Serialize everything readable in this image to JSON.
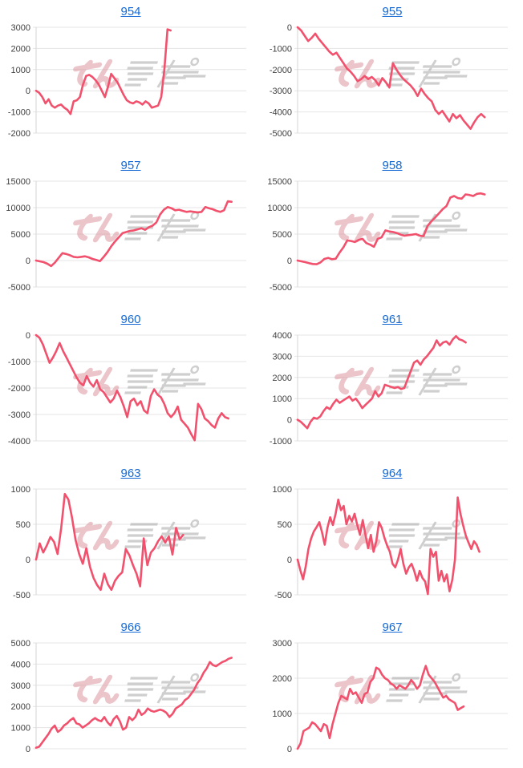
{
  "page": {
    "background": "#ffffff",
    "description": "grid of ten daily slump graphs"
  },
  "styles": {
    "line_color": "#f2516d",
    "grid_color": "#e4e4e4",
    "axis_color": "#d4d4d4",
    "tick_color": "#404040",
    "title_link_color": "#1668d2",
    "watermark_pink": "#dc96a0",
    "watermark_gray": "#a8a8a8"
  },
  "watermark": {
    "name": "minrepo-logo",
    "text": "みんレポ"
  },
  "chart_data": [
    {
      "type": "line",
      "title": "954",
      "xlabel": "",
      "ylabel": "",
      "legend": "none",
      "grid": true,
      "ylim": [
        -2000,
        3000
      ],
      "yticks": [
        3000,
        2000,
        1000,
        0,
        -1000,
        -2000
      ],
      "span": 0.64,
      "values": [
        0,
        -100,
        -300,
        -600,
        -400,
        -700,
        -800,
        -700,
        -650,
        -800,
        -900,
        -1100,
        -500,
        -450,
        -300,
        300,
        700,
        750,
        650,
        500,
        300,
        0,
        -300,
        200,
        800,
        600,
        400,
        100,
        -200,
        -450,
        -550,
        -600,
        -500,
        -550,
        -650,
        -500,
        -600,
        -800,
        -750,
        -700,
        -300,
        1000,
        2900,
        2850
      ]
    },
    {
      "type": "line",
      "title": "955",
      "xlabel": "",
      "ylabel": "",
      "legend": "none",
      "grid": true,
      "ylim": [
        -5000,
        0
      ],
      "yticks": [
        0,
        -1000,
        -2000,
        -3000,
        -4000,
        -5000
      ],
      "span": 0.89,
      "values": [
        0,
        -150,
        -400,
        -650,
        -500,
        -300,
        -550,
        -750,
        -950,
        -1150,
        -1300,
        -1200,
        -1450,
        -1700,
        -1950,
        -2100,
        -2300,
        -2550,
        -2450,
        -2300,
        -2450,
        -2350,
        -2500,
        -2750,
        -2400,
        -2600,
        -2850,
        -1700,
        -2000,
        -2250,
        -2450,
        -2600,
        -2750,
        -2950,
        -3250,
        -2900,
        -3150,
        -3350,
        -3500,
        -3900,
        -4100,
        -3950,
        -4200,
        -4450,
        -4100,
        -4300,
        -4150,
        -4400,
        -4600,
        -4800,
        -4500,
        -4250,
        -4100,
        -4250
      ]
    },
    {
      "type": "line",
      "title": "957",
      "xlabel": "",
      "ylabel": "",
      "legend": "none",
      "grid": true,
      "ylim": [
        -5000,
        15000
      ],
      "yticks": [
        15000,
        10000,
        5000,
        0,
        -5000
      ],
      "span": 0.93,
      "values": [
        0,
        -150,
        -300,
        -600,
        -1050,
        -400,
        500,
        1400,
        1250,
        1000,
        700,
        600,
        700,
        800,
        600,
        300,
        100,
        -100,
        700,
        1600,
        2700,
        3600,
        4400,
        5200,
        5400,
        5600,
        5700,
        5900,
        6100,
        5800,
        6300,
        6600,
        7200,
        8700,
        9600,
        10100,
        9900,
        9500,
        9600,
        9400,
        9200,
        9300,
        9200,
        9100,
        9200,
        10100,
        9900,
        9700,
        9400,
        9200,
        9500,
        11200,
        11100
      ]
    },
    {
      "type": "line",
      "title": "958",
      "xlabel": "",
      "ylabel": "",
      "legend": "none",
      "grid": true,
      "ylim": [
        -5000,
        15000
      ],
      "yticks": [
        15000,
        10000,
        5000,
        0,
        -5000
      ],
      "span": 0.89,
      "values": [
        0,
        -150,
        -300,
        -500,
        -650,
        -700,
        -350,
        300,
        500,
        250,
        350,
        1500,
        2500,
        3800,
        3700,
        3500,
        3900,
        4100,
        3300,
        3000,
        2600,
        4100,
        4400,
        5700,
        5500,
        5400,
        5200,
        4900,
        4700,
        4800,
        4900,
        5000,
        4700,
        4600,
        6500,
        7400,
        8100,
        8900,
        9700,
        10300,
        11900,
        12200,
        11800,
        11700,
        12500,
        12400,
        12200,
        12600,
        12700,
        12500
      ]
    },
    {
      "type": "line",
      "title": "960",
      "xlabel": "",
      "ylabel": "",
      "legend": "none",
      "grid": true,
      "ylim": [
        -4000,
        0
      ],
      "yticks": [
        0,
        -1000,
        -2000,
        -3000,
        -4000
      ],
      "span": 0.915,
      "values": [
        0,
        -100,
        -350,
        -700,
        -1050,
        -850,
        -600,
        -300,
        -600,
        -850,
        -1100,
        -1350,
        -1600,
        -1800,
        -1900,
        -1550,
        -1800,
        -1950,
        -1700,
        -2050,
        -2150,
        -2350,
        -2550,
        -2400,
        -2100,
        -2350,
        -2700,
        -3100,
        -2500,
        -2400,
        -2650,
        -2500,
        -2850,
        -2950,
        -2300,
        -2050,
        -2250,
        -2350,
        -2600,
        -2950,
        -3100,
        -2950,
        -2700,
        -3200,
        -3350,
        -3500,
        -3750,
        -3980,
        -2600,
        -2800,
        -3150,
        -3250,
        -3400,
        -3500,
        -3150,
        -2950,
        -3100,
        -3150
      ]
    },
    {
      "type": "line",
      "title": "961",
      "xlabel": "",
      "ylabel": "",
      "legend": "none",
      "grid": true,
      "ylim": [
        -1000,
        4000
      ],
      "yticks": [
        4000,
        3000,
        2000,
        1000,
        0,
        -1000
      ],
      "span": 0.8,
      "values": [
        0,
        -100,
        -250,
        -400,
        -100,
        100,
        50,
        150,
        400,
        600,
        500,
        750,
        950,
        800,
        900,
        1000,
        1100,
        900,
        1000,
        800,
        550,
        700,
        850,
        1000,
        1350,
        1100,
        1250,
        1650,
        1600,
        1550,
        1500,
        1550,
        1450,
        1500,
        1900,
        2300,
        2700,
        2800,
        2600,
        2850,
        3000,
        3200,
        3400,
        3750,
        3500,
        3650,
        3700,
        3550,
        3800,
        3950,
        3800,
        3750,
        3650
      ]
    },
    {
      "type": "line",
      "title": "963",
      "xlabel": "",
      "ylabel": "",
      "legend": "none",
      "grid": true,
      "ylim": [
        -500,
        1000
      ],
      "yticks": [
        1000,
        500,
        0,
        -500
      ],
      "span": 0.7,
      "values": [
        0,
        230,
        100,
        200,
        320,
        250,
        80,
        450,
        930,
        850,
        600,
        280,
        80,
        -60,
        160,
        -100,
        -260,
        -360,
        -430,
        -200,
        -350,
        -430,
        -300,
        -230,
        -180,
        150,
        60,
        -80,
        -200,
        -380,
        300,
        -80,
        100,
        160,
        260,
        330,
        240,
        330,
        70,
        450,
        290,
        350
      ]
    },
    {
      "type": "line",
      "title": "964",
      "xlabel": "",
      "ylabel": "",
      "legend": "none",
      "grid": true,
      "ylim": [
        -500,
        1000
      ],
      "yticks": [
        1000,
        500,
        0,
        -500
      ],
      "span": 0.865,
      "values": [
        0,
        -150,
        -280,
        -100,
        150,
        300,
        400,
        460,
        530,
        390,
        210,
        450,
        600,
        490,
        650,
        850,
        700,
        760,
        500,
        620,
        540,
        650,
        490,
        350,
        560,
        350,
        160,
        350,
        110,
        260,
        530,
        450,
        310,
        200,
        110,
        -60,
        -110,
        0,
        150,
        -60,
        -200,
        -110,
        -60,
        -160,
        -300,
        -160,
        -260,
        -310,
        -490,
        150,
        40,
        110,
        -300,
        -160,
        -310,
        -210,
        -450,
        -290,
        0,
        880,
        650,
        490,
        340,
        240,
        150,
        260,
        210,
        110
      ]
    },
    {
      "type": "line",
      "title": "966",
      "xlabel": "",
      "ylabel": "",
      "legend": "none",
      "grid": true,
      "ylim": [
        0,
        5000
      ],
      "yticks": [
        5000,
        4000,
        3000,
        2000,
        1000,
        0
      ],
      "span": 0.93,
      "values": [
        50,
        100,
        300,
        500,
        700,
        950,
        1100,
        800,
        900,
        1100,
        1200,
        1350,
        1450,
        1200,
        1150,
        1000,
        1100,
        1200,
        1350,
        1450,
        1350,
        1300,
        1500,
        1250,
        1100,
        1400,
        1550,
        1300,
        900,
        1000,
        1500,
        1350,
        1500,
        1850,
        1600,
        1700,
        1900,
        1800,
        1750,
        1800,
        1850,
        1800,
        1700,
        1500,
        1650,
        1900,
        2000,
        2100,
        2300,
        2400,
        2600,
        2800,
        3100,
        3300,
        3600,
        3800,
        4100,
        3950,
        3900,
        4000,
        4100,
        4150,
        4250,
        4300
      ]
    },
    {
      "type": "line",
      "title": "967",
      "xlabel": "",
      "ylabel": "",
      "legend": "none",
      "grid": true,
      "ylim": [
        0,
        3000
      ],
      "yticks": [
        3000,
        2000,
        1000,
        0
      ],
      "span": 0.79,
      "values": [
        0,
        150,
        500,
        550,
        600,
        750,
        700,
        600,
        500,
        700,
        650,
        300,
        700,
        1000,
        1300,
        1500,
        1450,
        1400,
        1700,
        1550,
        1600,
        1450,
        1300,
        1550,
        1600,
        1900,
        2000,
        2300,
        2250,
        2100,
        2000,
        1950,
        1850,
        1800,
        1700,
        1800,
        1750,
        1700,
        1800,
        1950,
        1850,
        1700,
        1800,
        2100,
        2350,
        2100,
        2000,
        1900,
        1750,
        1600,
        1450,
        1500,
        1400,
        1350,
        1300,
        1100,
        1150,
        1200
      ]
    }
  ]
}
